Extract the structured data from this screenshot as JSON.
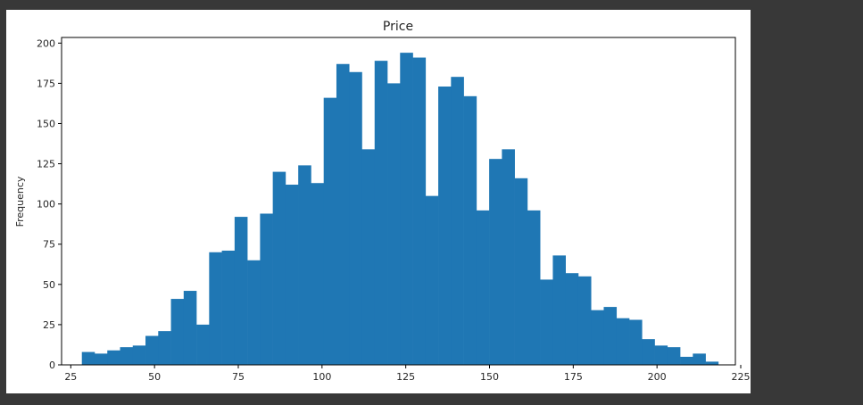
{
  "chart_data": {
    "type": "bar",
    "title": "Price",
    "xlabel": "",
    "ylabel": "Frequency",
    "xlim": [
      22.25,
      223.4
    ],
    "ylim": [
      0,
      203.5
    ],
    "xticks": [
      25,
      50,
      75,
      100,
      125,
      150,
      175,
      200,
      225
    ],
    "yticks": [
      0,
      25,
      50,
      75,
      100,
      125,
      150,
      175,
      200
    ],
    "grid": false,
    "bar_color": "#1f77b4",
    "bin_edges": [
      28.3,
      32.1,
      35.9,
      39.7,
      43.5,
      47.3,
      51.1,
      54.9,
      58.7,
      62.5,
      66.3,
      70.1,
      73.9,
      77.7,
      81.5,
      85.3,
      89.1,
      92.9,
      96.7,
      100.5,
      104.3,
      108.1,
      111.9,
      115.7,
      119.5,
      123.3,
      127.1,
      130.9,
      134.7,
      138.5,
      142.3,
      146.1,
      149.9,
      153.7,
      157.5,
      161.3,
      165.1,
      168.9,
      172.7,
      176.5,
      180.3,
      184.1,
      187.9,
      191.7,
      195.5,
      199.3,
      203.1,
      206.9,
      210.7,
      214.5,
      218.3
    ],
    "counts": [
      8,
      7,
      9,
      11,
      12,
      18,
      21,
      41,
      46,
      25,
      70,
      71,
      92,
      65,
      94,
      120,
      112,
      124,
      113,
      166,
      187,
      182,
      134,
      189,
      175,
      194,
      191,
      105,
      173,
      179,
      167,
      96,
      128,
      134,
      116,
      96,
      53,
      68,
      57,
      55,
      34,
      36,
      29,
      28,
      16,
      12,
      11,
      5,
      7,
      2
    ]
  }
}
